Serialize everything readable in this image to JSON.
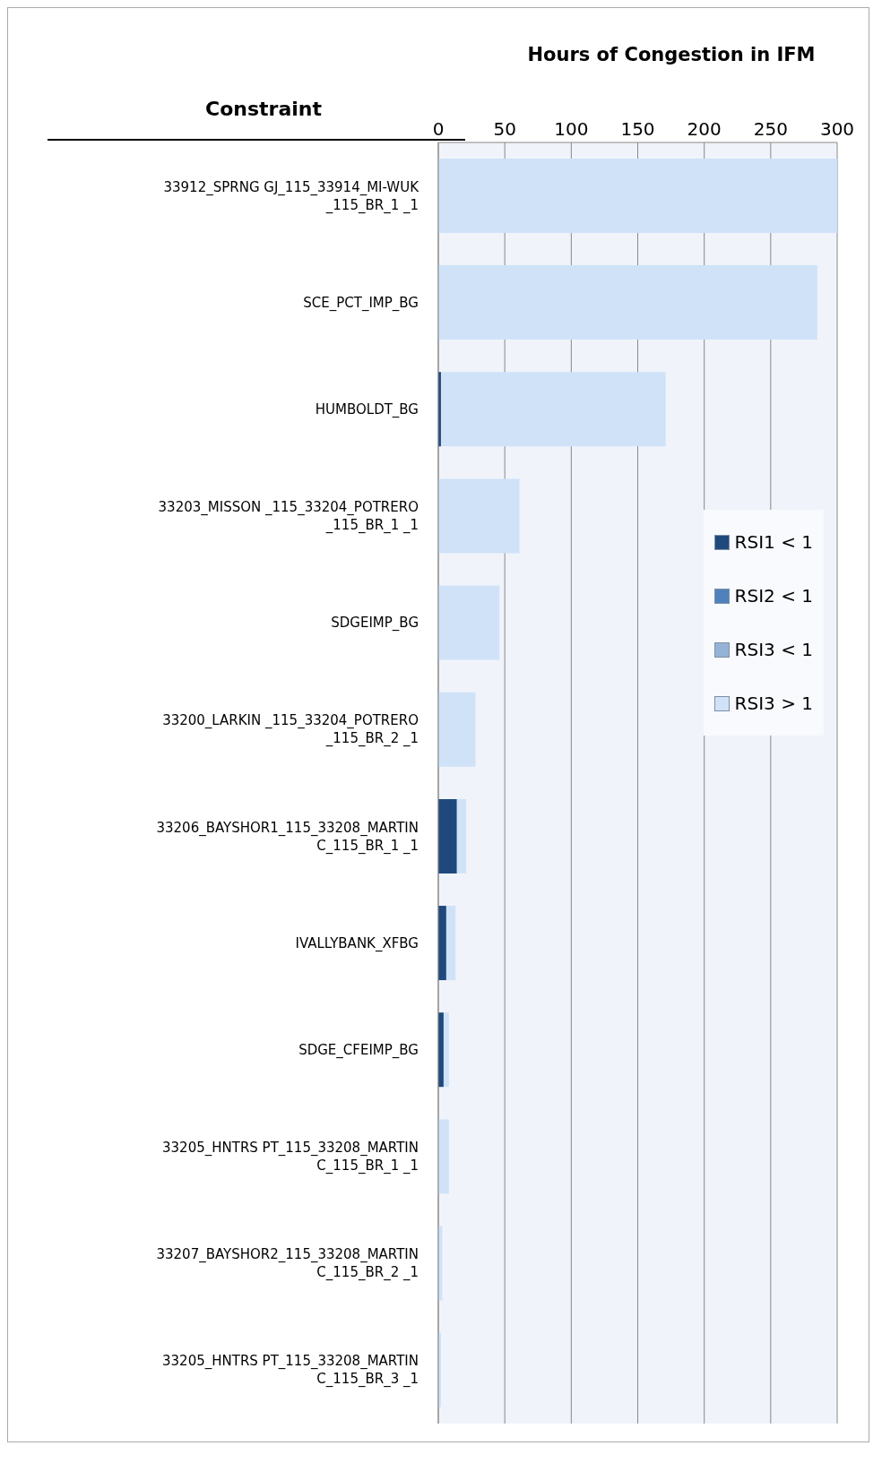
{
  "chart_data": {
    "type": "bar",
    "orientation": "horizontal",
    "stacked": true,
    "xlabel": "Hours of Congestion in IFM",
    "ylabel": "Constraint",
    "categories": [
      "33912_SPRNG GJ_115_33914_MI-WUK _115_BR_1 _1",
      "SCE_PCT_IMP_BG",
      "HUMBOLDT_BG",
      "33203_MISSON _115_33204_POTRERO _115_BR_1 _1",
      "SDGEIMP_BG",
      "33200_LARKIN _115_33204_POTRERO _115_BR_2 _1",
      "33206_BAYSHOR1_115_33208_MARTIN C_115_BR_1 _1",
      "IVALLYBANK_XFBG",
      "SDGE_CFEIMP_BG",
      "33205_HNTRS PT_115_33208_MARTIN C_115_BR_1 _1",
      "33207_BAYSHOR2_115_33208_MARTIN C_115_BR_2 _1",
      "33205_HNTRS PT_115_33208_MARTIN C_115_BR_3 _1"
    ],
    "series": [
      {
        "name": "RSI1 < 1",
        "color": "#1f497d",
        "values": [
          0,
          0,
          2,
          0,
          0,
          0,
          14,
          6,
          4,
          0,
          0,
          0
        ]
      },
      {
        "name": "RSI2 < 1",
        "color": "#4f81bd",
        "values": [
          0,
          0,
          0,
          0,
          0,
          0,
          0,
          0,
          0,
          0,
          0,
          0
        ]
      },
      {
        "name": "RSI3 < 1",
        "color": "#95b3d7",
        "values": [
          0,
          0,
          0,
          0,
          0,
          0,
          0,
          0,
          0,
          0,
          0,
          0
        ]
      },
      {
        "name": "RSI3 > 1",
        "color": "#cfe2f8",
        "values": [
          300,
          285,
          169,
          61,
          46,
          28,
          7,
          7,
          4,
          8,
          3,
          2
        ]
      }
    ],
    "xlim": [
      0,
      300
    ],
    "xticks": [
      0,
      50,
      100,
      150,
      200,
      250,
      300
    ],
    "grid": "x",
    "legend": "right"
  }
}
